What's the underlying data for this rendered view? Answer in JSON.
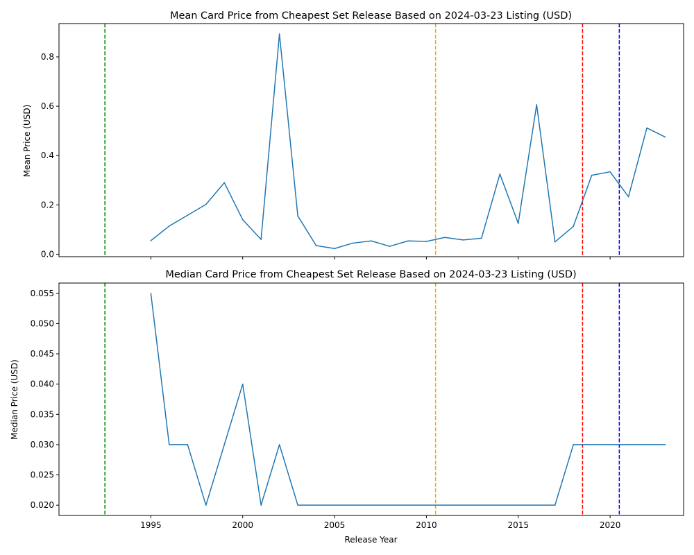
{
  "chart_data": [
    {
      "type": "line",
      "title": "Mean Card Price from Cheapest Set Release Based on 2024-03-23 Listing (USD)",
      "xlabel": "",
      "ylabel": "Mean Price (USD)",
      "xlim": [
        1990,
        2024
      ],
      "ylim": [
        -0.01,
        0.935
      ],
      "xticks": [
        1995,
        2000,
        2005,
        2010,
        2015,
        2020
      ],
      "xtick_labels_visible": false,
      "yticks": [
        0.0,
        0.2,
        0.4,
        0.6,
        0.8
      ],
      "ytick_labels": [
        "0.0",
        "0.2",
        "0.4",
        "0.6",
        "0.8"
      ],
      "grid": false,
      "line_color": "#1f77b4",
      "vlines": [
        {
          "x": 1992.5,
          "color": "#008000",
          "style": "dashed"
        },
        {
          "x": 2010.5,
          "color": "#ffa500",
          "style": "dashed"
        },
        {
          "x": 2018.5,
          "color": "#ff0000",
          "style": "dashed"
        },
        {
          "x": 2020.5,
          "color": "#0000ff",
          "style": "dashed"
        }
      ],
      "series": [
        {
          "x": [
            1995,
            1996,
            1997,
            1998,
            1999,
            2000,
            2001,
            2002,
            2003,
            2004,
            2005,
            2006,
            2007,
            2008,
            2009,
            2010,
            2011,
            2012,
            2013,
            2014,
            2015,
            2016,
            2017,
            2018,
            2019,
            2020,
            2021,
            2022,
            2023
          ],
          "values": [
            0.055,
            0.114,
            0.158,
            0.202,
            0.29,
            0.14,
            0.06,
            0.893,
            0.155,
            0.035,
            0.023,
            0.045,
            0.054,
            0.032,
            0.054,
            0.052,
            0.068,
            0.058,
            0.065,
            0.325,
            0.125,
            0.606,
            0.05,
            0.113,
            0.32,
            0.334,
            0.233,
            0.512,
            0.475
          ]
        }
      ]
    },
    {
      "type": "line",
      "title": "Median Card Price from Cheapest Set Release Based on 2024-03-23 Listing (USD)",
      "xlabel": "Release Year",
      "ylabel": "Median Price (USD)",
      "xlim": [
        1990,
        2024
      ],
      "ylim": [
        0.0183,
        0.0567
      ],
      "xticks": [
        1995,
        2000,
        2005,
        2010,
        2015,
        2020
      ],
      "xtick_labels": [
        "1995",
        "2000",
        "2005",
        "2010",
        "2015",
        "2020"
      ],
      "yticks": [
        0.02,
        0.025,
        0.03,
        0.035,
        0.04,
        0.045,
        0.05,
        0.055
      ],
      "ytick_labels": [
        "0.020",
        "0.025",
        "0.030",
        "0.035",
        "0.040",
        "0.045",
        "0.050",
        "0.055"
      ],
      "grid": false,
      "line_color": "#1f77b4",
      "vlines": [
        {
          "x": 1992.5,
          "color": "#008000",
          "style": "dashed"
        },
        {
          "x": 2010.5,
          "color": "#ffa500",
          "style": "dashed"
        },
        {
          "x": 2018.5,
          "color": "#ff0000",
          "style": "dashed"
        },
        {
          "x": 2020.5,
          "color": "#0000ff",
          "style": "dashed"
        }
      ],
      "series": [
        {
          "x": [
            1995,
            1996,
            1997,
            1998,
            1999,
            2000,
            2001,
            2002,
            2003,
            2004,
            2005,
            2006,
            2007,
            2008,
            2009,
            2010,
            2011,
            2012,
            2013,
            2014,
            2015,
            2016,
            2017,
            2018,
            2019,
            2020,
            2021,
            2022,
            2023
          ],
          "values": [
            0.055,
            0.03,
            0.03,
            0.02,
            0.03,
            0.04,
            0.02,
            0.03,
            0.02,
            0.02,
            0.02,
            0.02,
            0.02,
            0.02,
            0.02,
            0.02,
            0.02,
            0.02,
            0.02,
            0.02,
            0.02,
            0.02,
            0.02,
            0.03,
            0.03,
            0.03,
            0.03,
            0.03,
            0.03
          ]
        }
      ]
    }
  ]
}
